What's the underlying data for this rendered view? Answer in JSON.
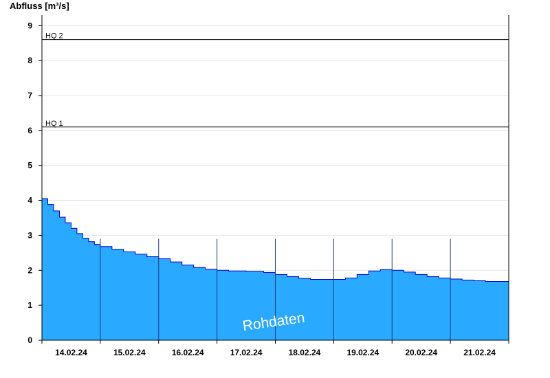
{
  "chart_data": {
    "type": "area",
    "ylabel": "Abfluss [m³/s]",
    "ylim": [
      0,
      9.3
    ],
    "yticks": [
      0,
      1,
      2,
      3,
      4,
      5,
      6,
      7,
      8,
      9
    ],
    "xticks": [
      "14.02.24",
      "15.02.24",
      "16.02.24",
      "17.02.24",
      "18.02.24",
      "19.02.24",
      "20.02.24",
      "21.02.24"
    ],
    "xlim": [
      0,
      8
    ],
    "grid": true,
    "series": [
      {
        "color": "#29a9ff",
        "x": [
          0,
          0.1,
          0.2,
          0.3,
          0.4,
          0.5,
          0.6,
          0.7,
          0.8,
          0.9,
          1.0,
          1.2,
          1.4,
          1.6,
          1.8,
          2.0,
          2.2,
          2.4,
          2.6,
          2.8,
          3.0,
          3.2,
          3.5,
          3.8,
          4.0,
          4.2,
          4.4,
          4.6,
          4.8,
          5.0,
          5.2,
          5.4,
          5.6,
          5.8,
          6.0,
          6.2,
          6.4,
          6.6,
          6.8,
          7.0,
          7.2,
          7.4,
          7.6,
          7.8,
          8.0
        ],
        "y": [
          4.05,
          3.88,
          3.7,
          3.52,
          3.36,
          3.2,
          3.05,
          2.92,
          2.82,
          2.74,
          2.68,
          2.6,
          2.53,
          2.46,
          2.39,
          2.33,
          2.24,
          2.15,
          2.08,
          2.03,
          2.0,
          1.98,
          1.97,
          1.94,
          1.88,
          1.82,
          1.77,
          1.74,
          1.74,
          1.74,
          1.78,
          1.88,
          1.98,
          2.02,
          2.0,
          1.95,
          1.88,
          1.82,
          1.78,
          1.75,
          1.72,
          1.7,
          1.68,
          1.68,
          1.68
        ]
      }
    ],
    "reference_lines": [
      {
        "label": "HQ 1",
        "value": 6.1
      },
      {
        "label": "HQ 2",
        "value": 8.6
      }
    ],
    "annotation": "Rohdaten"
  }
}
